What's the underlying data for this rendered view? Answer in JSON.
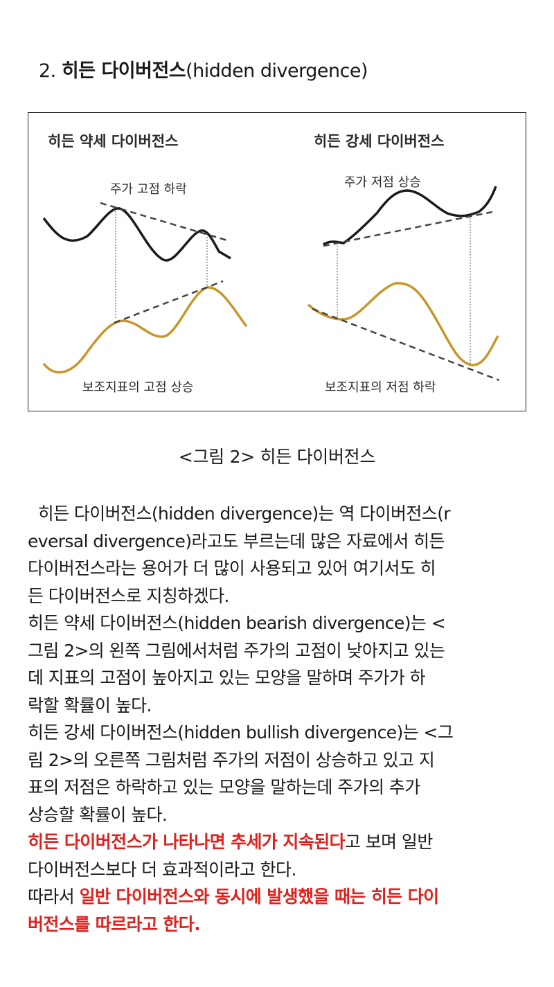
{
  "heading": {
    "number": "2.",
    "title_bold": "히든 다이버전스",
    "title_suffix": "(hidden divergence)"
  },
  "figure": {
    "left_title": "히든 약세 다이버전스",
    "left_price_label": "주가 고점 하락",
    "left_indicator_label": "보조지표의 고점 상승",
    "right_title": "히든 강세 다이버전스",
    "right_price_label": "주가 저점 상승",
    "right_indicator_label": "보조지표의 저점 하락",
    "colors": {
      "price_line": "#1a1a1a",
      "indicator_line": "#c8962a",
      "trend_line": "#444444"
    }
  },
  "caption": "<그림 2> 히든 다이버전스",
  "lines": [
    "  히든 다이버전스(hidden divergence)는 역 다이버전스(r",
    "eversal divergence)라고도 부르는데 많은 자료에서 히든",
    "다이버전스라는 용어가 더 많이 사용되고 있어 여기서도 히",
    "든 다이버전스로 지칭하겠다.",
    "히든 약세 다이버전스(hidden bearish divergence)는 <",
    "그림 2>의 왼쪽 그림에서처럼 주가의 고점이 낮아지고 있는",
    "데 지표의 고점이 높아지고 있는 모양을 말하며 주가가 하",
    "락할 확률이 높다.",
    "히든 강세 다이버전스(hidden bullish divergence)는 <그",
    "림 2>의 오른쪽 그림처럼 주가의 저점이 상승하고 있고 지",
    "표의 저점은 하락하고 있는 모양을 말하는데 주가의 추가",
    "상승할 확률이 높다."
  ],
  "line13": {
    "red": "히든 다이버전스가 나타나면 추세가 지속된다",
    "rest": "고 보며 일반"
  },
  "line14": "다이버전스보다 더 효과적이라고 한다.",
  "line15": {
    "prefix": "따라서 ",
    "red": "일반 다이버전스와 동시에 발생했을 때는 히든 다이"
  },
  "line16": {
    "red": "버전스를 따르라고 한다."
  }
}
